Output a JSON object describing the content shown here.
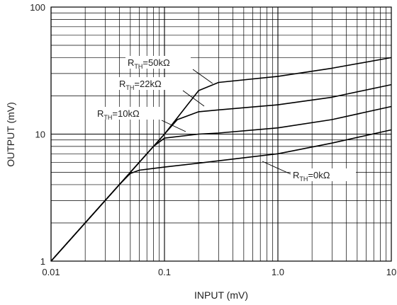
{
  "chart_data": {
    "type": "line",
    "xscale": "log",
    "yscale": "log",
    "xlim": [
      0.01,
      10
    ],
    "ylim": [
      1,
      100
    ],
    "xlabel": "INPUT (mV)",
    "ylabel": "OUTPUT (mV)",
    "xticks": [
      {
        "value": 0.01,
        "label": "0.01"
      },
      {
        "value": 0.1,
        "label": "0.1"
      },
      {
        "value": 1,
        "label": "1.0"
      },
      {
        "value": 10,
        "label": "10"
      }
    ],
    "yticks": [
      {
        "value": 1,
        "label": "1"
      },
      {
        "value": 10,
        "label": "10"
      },
      {
        "value": 100,
        "label": "100"
      }
    ],
    "grid": true,
    "series": [
      {
        "name": "RTH=50kΩ",
        "label": {
          "main": "R",
          "sub": "TH",
          "rest": "=50kΩ"
        },
        "x": [
          0.01,
          0.1,
          0.2,
          0.3,
          1,
          3,
          10
        ],
        "y": [
          1,
          10,
          22,
          25.5,
          28.5,
          33,
          40
        ]
      },
      {
        "name": "RTH=22kΩ",
        "label": {
          "main": "R",
          "sub": "TH",
          "rest": "=22kΩ"
        },
        "x": [
          0.01,
          0.1,
          0.13,
          0.2,
          0.3,
          1,
          3,
          10
        ],
        "y": [
          1,
          10,
          13,
          15,
          15.5,
          17,
          19.5,
          24.5
        ]
      },
      {
        "name": "RTH=10kΩ",
        "label": {
          "main": "R",
          "sub": "TH",
          "rest": "=10kΩ"
        },
        "x": [
          0.01,
          0.08,
          0.1,
          0.2,
          0.3,
          1,
          3,
          10
        ],
        "y": [
          1,
          8,
          9.3,
          10,
          10.2,
          11.2,
          13,
          16.5
        ]
      },
      {
        "name": "RTH=0kΩ",
        "label": {
          "main": "R",
          "sub": "TH",
          "rest": "=0kΩ"
        },
        "x": [
          0.01,
          0.04,
          0.05,
          0.06,
          0.1,
          0.2,
          1,
          3,
          10
        ],
        "y": [
          1,
          4,
          4.9,
          5.2,
          5.5,
          5.9,
          7,
          8.5,
          10.8
        ]
      }
    ]
  }
}
